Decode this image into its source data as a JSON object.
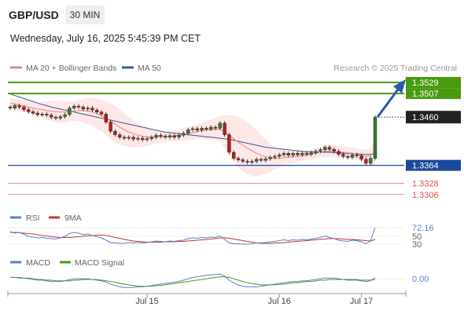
{
  "header": {
    "symbol": "GBP/USD",
    "interval": "30 MIN",
    "datetime": "Wednesday, July 16, 2025 5:45:39 PM CET"
  },
  "legend": {
    "ma20": "MA 20 + Bollinger Bands",
    "ma50": "MA 50",
    "credit": "Research © 2025 Trading Central",
    "rsi": "RSI",
    "rsi_ma": "9MA",
    "macd": "MACD",
    "macd_signal": "MACD Signal"
  },
  "colors": {
    "ma20": "#f08080",
    "ma50": "#3a5a9a",
    "band_fill": "#fde3e3",
    "up": "#2e7d32",
    "down": "#b71c1c",
    "resistance": "#4a9a10",
    "support": "#1a4a9a",
    "target_red": "#e05050",
    "arrow": "#2a5aa8",
    "rsi": "#5b7fd0",
    "rsi_ma": "#c0392b",
    "macd": "#5b7fd0",
    "macd_signal": "#4a9a10"
  },
  "chart_data": [
    {
      "type": "candlestick",
      "title": "GBP/USD",
      "ylim": [
        1.329,
        1.354
      ],
      "levels": [
        {
          "value": 1.3529,
          "kind": "resistance",
          "label": "1.3529"
        },
        {
          "value": 1.3507,
          "kind": "resistance",
          "label": "1.3507"
        },
        {
          "value": 1.346,
          "kind": "current",
          "label": "1.3460"
        },
        {
          "value": 1.3364,
          "kind": "support",
          "label": "1.3364"
        },
        {
          "value": 1.3328,
          "kind": "target",
          "label": "1.3328"
        },
        {
          "value": 1.3306,
          "kind": "target",
          "label": "1.3306"
        }
      ],
      "x_ticks": [
        "Jul 15",
        "Jul 16",
        "Jul 17"
      ],
      "close": [
        1.3478,
        1.3483,
        1.348,
        1.3475,
        1.3471,
        1.3468,
        1.3465,
        1.3466,
        1.3464,
        1.346,
        1.3458,
        1.3461,
        1.3465,
        1.3478,
        1.3482,
        1.348,
        1.3476,
        1.3478,
        1.3474,
        1.347,
        1.3466,
        1.345,
        1.3432,
        1.3425,
        1.342,
        1.3418,
        1.342,
        1.3416,
        1.3418,
        1.3415,
        1.3417,
        1.342,
        1.3424,
        1.3422,
        1.342,
        1.3423,
        1.342,
        1.3424,
        1.3428,
        1.3435,
        1.3437,
        1.3434,
        1.3438,
        1.3436,
        1.344,
        1.3438,
        1.3448,
        1.3425,
        1.339,
        1.3378,
        1.3375,
        1.3372,
        1.337,
        1.3372,
        1.3376,
        1.3374,
        1.3377,
        1.338,
        1.3382,
        1.3385,
        1.3388,
        1.3384,
        1.3388,
        1.3385,
        1.3388,
        1.3386,
        1.3389,
        1.3392,
        1.3395,
        1.34,
        1.3396,
        1.3392,
        1.3386,
        1.3382,
        1.338,
        1.3385,
        1.3383,
        1.3376,
        1.3368,
        1.3378,
        1.346
      ],
      "ma20": [
        1.3488,
        1.3486,
        1.3484,
        1.3482,
        1.348,
        1.3478,
        1.3476,
        1.3475,
        1.3473,
        1.3472,
        1.3471,
        1.347,
        1.347,
        1.3471,
        1.3472,
        1.3473,
        1.3473,
        1.3472,
        1.347,
        1.3467,
        1.3463,
        1.3458,
        1.3452,
        1.3446,
        1.344,
        1.3435,
        1.343,
        1.3427,
        1.3424,
        1.3422,
        1.3421,
        1.342,
        1.342,
        1.3421,
        1.3421,
        1.3422,
        1.3423,
        1.3424,
        1.3425,
        1.3427,
        1.3429,
        1.3431,
        1.3433,
        1.3434,
        1.3435,
        1.3436,
        1.3436,
        1.3431,
        1.3424,
        1.3417,
        1.341,
        1.3404,
        1.3398,
        1.3393,
        1.3388,
        1.3384,
        1.3381,
        1.3379,
        1.3378,
        1.3378,
        1.3379,
        1.338,
        1.3381,
        1.3382,
        1.3383,
        1.3384,
        1.3386,
        1.3388,
        1.339,
        1.3392,
        1.3392,
        1.3392,
        1.3391,
        1.339,
        1.3389,
        1.3388,
        1.3386,
        1.3384,
        1.3382,
        1.3383,
        1.3392
      ],
      "ma50": [
        1.3506,
        1.3503,
        1.35,
        1.3497,
        1.3494,
        1.3491,
        1.3488,
        1.3485,
        1.3483,
        1.348,
        1.3478,
        1.3476,
        1.3474,
        1.3472,
        1.347,
        1.3468,
        1.3466,
        1.3464,
        1.3462,
        1.346,
        1.3458,
        1.3456,
        1.3454,
        1.3452,
        1.345,
        1.3448,
        1.3446,
        1.3444,
        1.3442,
        1.344,
        1.3438,
        1.3436,
        1.3434,
        1.3432,
        1.343,
        1.3429,
        1.3428,
        1.3427,
        1.3426,
        1.3425,
        1.3424,
        1.3423,
        1.3422,
        1.3421,
        1.342,
        1.3419,
        1.3418,
        1.3417,
        1.3416,
        1.3414,
        1.3412,
        1.341,
        1.3408,
        1.3406,
        1.3404,
        1.3402,
        1.34,
        1.3399,
        1.3398,
        1.3397,
        1.3396,
        1.3395,
        1.3394,
        1.3393,
        1.3392,
        1.3391,
        1.3391,
        1.339,
        1.339,
        1.339,
        1.339,
        1.3389,
        1.3389,
        1.3388,
        1.3388,
        1.3387,
        1.3387,
        1.3386,
        1.3386,
        1.3386,
        1.3387
      ],
      "band_width": [
        0.001,
        0.0011,
        0.0012,
        0.0012,
        0.0012,
        0.0013,
        0.0014,
        0.0016,
        0.0018,
        0.002,
        0.0022,
        0.0022,
        0.0021,
        0.002,
        0.002,
        0.0021,
        0.0023,
        0.0026,
        0.0028,
        0.003,
        0.0032,
        0.0034,
        0.0036,
        0.0036,
        0.0035,
        0.0033,
        0.003,
        0.0027,
        0.0024,
        0.0021,
        0.0018,
        0.0015,
        0.0013,
        0.0012,
        0.0011,
        0.001,
        0.001,
        0.0011,
        0.0012,
        0.0013,
        0.0014,
        0.0015,
        0.0016,
        0.0018,
        0.002,
        0.0022,
        0.0026,
        0.0032,
        0.004,
        0.0046,
        0.005,
        0.0052,
        0.0052,
        0.005,
        0.0046,
        0.004,
        0.0034,
        0.0028,
        0.0022,
        0.0018,
        0.0015,
        0.0013,
        0.0012,
        0.0011,
        0.001,
        0.001,
        0.001,
        0.001,
        0.001,
        0.0011,
        0.0012,
        0.0012,
        0.0012,
        0.0012,
        0.0012,
        0.0012,
        0.0012,
        0.0012,
        0.0013,
        0.0016,
        0.0028
      ]
    },
    {
      "type": "line",
      "title": "RSI",
      "ylim": [
        20,
        80
      ],
      "levels": [
        72.16,
        50,
        30
      ],
      "level_labels": [
        "72.16",
        "50",
        "30"
      ],
      "series": [
        {
          "name": "RSI",
          "values": [
            62,
            58,
            60,
            55,
            50,
            48,
            46,
            47,
            45,
            44,
            43,
            46,
            50,
            57,
            60,
            58,
            54,
            56,
            52,
            49,
            46,
            40,
            34,
            33,
            32,
            32,
            34,
            33,
            34,
            33,
            34,
            36,
            38,
            37,
            36,
            38,
            37,
            39,
            40,
            44,
            46,
            45,
            47,
            46,
            48,
            47,
            51,
            42,
            33,
            31,
            31,
            30,
            30,
            31,
            33,
            33,
            34,
            36,
            37,
            39,
            41,
            39,
            41,
            40,
            42,
            41,
            43,
            45,
            47,
            51,
            47,
            44,
            40,
            38,
            37,
            40,
            39,
            36,
            31,
            38,
            72.16
          ]
        },
        {
          "name": "9MA",
          "values": [
            60,
            60,
            59,
            58,
            57,
            56,
            54,
            52,
            51,
            49,
            48,
            47,
            47,
            47,
            48,
            49,
            50,
            51,
            52,
            53,
            53,
            52,
            50,
            47,
            45,
            42,
            40,
            38,
            37,
            36,
            35,
            35,
            35,
            35,
            36,
            36,
            36,
            37,
            37,
            38,
            39,
            40,
            41,
            42,
            43,
            44,
            46,
            46,
            45,
            43,
            41,
            39,
            37,
            35,
            33,
            32,
            32,
            32,
            33,
            33,
            34,
            35,
            36,
            37,
            38,
            39,
            40,
            41,
            42,
            43,
            44,
            44,
            44,
            43,
            42,
            42,
            41,
            40,
            39,
            38,
            42
          ]
        }
      ]
    },
    {
      "type": "line",
      "title": "MACD",
      "ylim": [
        -0.0015,
        0.0013
      ],
      "levels": [
        0.0
      ],
      "level_labels": [
        "0.00"
      ],
      "series": [
        {
          "name": "MACD",
          "values": [
            0.0002,
            0.0002,
            0.0001,
            0.0001,
            0.0,
            -0.0001,
            -0.0002,
            -0.0002,
            -0.0003,
            -0.0004,
            -0.0004,
            -0.0004,
            -0.0003,
            -0.0001,
            0.0,
            0.0,
            0.0,
            0.0,
            -0.0001,
            -0.0002,
            -0.0003,
            -0.0005,
            -0.0008,
            -0.001,
            -0.0012,
            -0.0013,
            -0.0013,
            -0.0013,
            -0.0012,
            -0.0012,
            -0.0011,
            -0.001,
            -0.0009,
            -0.0008,
            -0.0007,
            -0.0006,
            -0.0005,
            -0.0004,
            -0.0002,
            0.0,
            0.0002,
            0.0003,
            0.0004,
            0.0005,
            0.0006,
            0.0006,
            0.0007,
            0.0004,
            -0.0002,
            -0.0006,
            -0.0009,
            -0.0011,
            -0.0012,
            -0.0012,
            -0.0012,
            -0.0011,
            -0.001,
            -0.0009,
            -0.0008,
            -0.0007,
            -0.0006,
            -0.0005,
            -0.0004,
            -0.0004,
            -0.0003,
            -0.0003,
            -0.0002,
            -0.0001,
            0.0,
            0.0001,
            0.0001,
            0.0001,
            0.0,
            -0.0001,
            -0.0002,
            -0.0002,
            -0.0002,
            -0.0003,
            -0.0004,
            -0.0003,
            0.0002
          ]
        },
        {
          "name": "MACD Signal",
          "values": [
            0.0002,
            0.0002,
            0.0002,
            0.0001,
            0.0001,
            0.0,
            -0.0001,
            -0.0001,
            -0.0002,
            -0.0002,
            -0.0003,
            -0.0003,
            -0.0003,
            -0.0003,
            -0.0002,
            -0.0002,
            -0.0001,
            -0.0001,
            -0.0001,
            -0.0001,
            -0.0002,
            -0.0003,
            -0.0004,
            -0.0005,
            -0.0007,
            -0.0008,
            -0.0009,
            -0.001,
            -0.0011,
            -0.0011,
            -0.0011,
            -0.0011,
            -0.001,
            -0.001,
            -0.0009,
            -0.0008,
            -0.0007,
            -0.0006,
            -0.0005,
            -0.0004,
            -0.0003,
            -0.0002,
            -0.0001,
            0.0,
            0.0001,
            0.0002,
            0.0003,
            0.0003,
            0.0002,
            0.0,
            -0.0002,
            -0.0004,
            -0.0006,
            -0.0007,
            -0.0008,
            -0.0009,
            -0.0009,
            -0.0009,
            -0.0009,
            -0.0008,
            -0.0008,
            -0.0007,
            -0.0006,
            -0.0006,
            -0.0005,
            -0.0004,
            -0.0004,
            -0.0003,
            -0.0002,
            -0.0002,
            -0.0001,
            -0.0001,
            -0.0001,
            -0.0001,
            -0.0001,
            -0.0001,
            -0.0001,
            -0.0002,
            -0.0002,
            -0.0002,
            -0.0001
          ]
        }
      ]
    }
  ]
}
